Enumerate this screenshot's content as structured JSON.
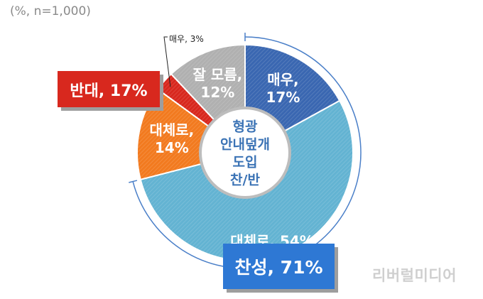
{
  "note": "(%, n=1,000)",
  "watermark": "리버럴미디어",
  "center_label": [
    "형광",
    "안내덮개",
    "도입",
    "찬/반"
  ],
  "summary": {
    "oppose": "반대, 17%",
    "support": "찬성, 71%"
  },
  "colors": {
    "very_support": "#3a67b1",
    "somewhat_support": "#63b3d2",
    "somewhat_oppose": "#f27a1f",
    "very_oppose": "#d8281e",
    "dont_know": "#b0b0b0",
    "oppose_box": "#d8281e",
    "support_box": "#2e78d4",
    "bracket": "#4a7fc8"
  },
  "chart_data": {
    "type": "pie",
    "slices": [
      {
        "label": "매우, 17%",
        "value": 17,
        "color": "#3a67b1",
        "label_lines": [
          "매우,",
          "17%"
        ]
      },
      {
        "label": "대체로, 54%",
        "value": 54,
        "color": "#63b3d2",
        "label_lines": [
          "대체로, 54%"
        ]
      },
      {
        "label": "대체로, 14%",
        "value": 14,
        "color": "#f27a1f",
        "label_lines": [
          "대체로,",
          "14%"
        ]
      },
      {
        "label": "매우, 3%",
        "value": 3,
        "color": "#d8281e",
        "label_lines": []
      },
      {
        "label": "잘 모름, 12%",
        "value": 12,
        "color": "#b0b0b0",
        "label_lines": [
          "잘 모름,",
          "12%"
        ]
      }
    ],
    "callout": "매우, 3%"
  }
}
